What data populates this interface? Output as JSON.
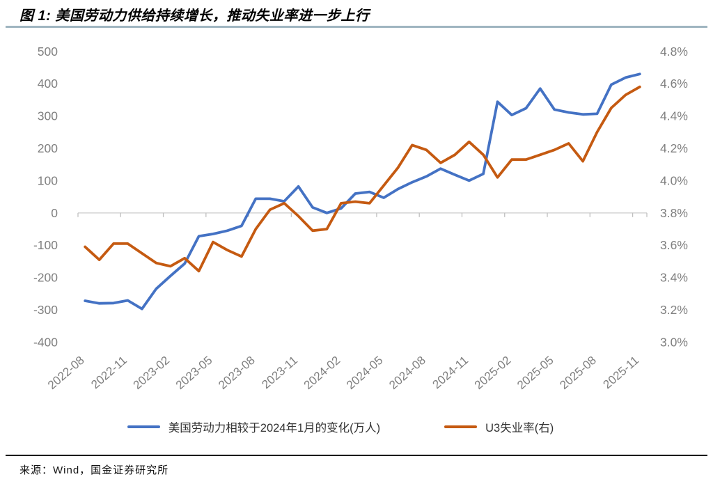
{
  "title": "图 1: 美国劳动力供给持续增长，推动失业率进一步上行",
  "source": "来源：Wind，国金证券研究所",
  "colors": {
    "labor_force_line": "#4472C4",
    "u3_line": "#C55A11",
    "axis_text": "#7f7f7f",
    "zero_gridline": "#d6d6d6",
    "title_rule": "#9fb5c0",
    "source_rule": "#1a1a1a"
  },
  "chart_data": {
    "type": "line",
    "title": "图 1: 美国劳动力供给持续增长，推动失业率进一步上行",
    "grid": "horizontal zero-line only",
    "legend_position": "bottom",
    "x": [
      "2022-08",
      "2022-09",
      "2022-10",
      "2022-11",
      "2022-12",
      "2023-01",
      "2023-02",
      "2023-03",
      "2023-04",
      "2023-05",
      "2023-06",
      "2023-07",
      "2023-08",
      "2023-09",
      "2023-10",
      "2023-11",
      "2023-12",
      "2024-01",
      "2024-02",
      "2024-03",
      "2024-04",
      "2024-05",
      "2024-06",
      "2024-07",
      "2024-08",
      "2024-09",
      "2024-10",
      "2024-11",
      "2024-12",
      "2025-01",
      "2025-02",
      "2025-03",
      "2025-04",
      "2025-05",
      "2025-06",
      "2025-07",
      "2025-08",
      "2025-09",
      "2025-10",
      "2025-11"
    ],
    "x_tick_labels": [
      "2022-08",
      "2022-11",
      "2023-02",
      "2023-05",
      "2023-08",
      "2023-11",
      "2024-02",
      "2024-05",
      "2024-08",
      "2024-11",
      "2025-02",
      "2025-05",
      "2025-08",
      "2025-11"
    ],
    "series": [
      {
        "name": "美国劳动力相较于2024年1月的变化(万人)",
        "axis": "left",
        "color": "#4472C4",
        "values": [
          -272,
          -280,
          -279,
          -271,
          -297,
          -235,
          -195,
          -157,
          -72,
          -65,
          -55,
          -40,
          44,
          44,
          36,
          82,
          17,
          0,
          14,
          60,
          65,
          47,
          74,
          95,
          113,
          137,
          118,
          100,
          121,
          344,
          303,
          324,
          385,
          320,
          311,
          305,
          307,
          397,
          419,
          430
        ]
      },
      {
        "name": "U3失业率(右)",
        "axis": "right",
        "color": "#C55A11",
        "values": [
          3.59,
          3.51,
          3.61,
          3.61,
          3.55,
          3.49,
          3.47,
          3.52,
          3.44,
          3.62,
          3.57,
          3.53,
          3.7,
          3.82,
          3.86,
          3.78,
          3.69,
          3.7,
          3.86,
          3.87,
          3.86,
          3.97,
          4.08,
          4.22,
          4.19,
          4.11,
          4.16,
          4.24,
          4.16,
          4.02,
          4.13,
          4.13,
          4.16,
          4.19,
          4.23,
          4.12,
          4.3,
          4.45,
          4.53,
          4.58
        ]
      }
    ],
    "left_axis": {
      "min": -400,
      "max": 500,
      "step": 100,
      "ticks": [
        "500",
        "400",
        "300",
        "200",
        "100",
        "0",
        "-100",
        "-200",
        "-300",
        "-400"
      ]
    },
    "right_axis": {
      "min": 3.0,
      "max": 4.8,
      "step": 0.2,
      "ticks": [
        "4.8%",
        "4.6%",
        "4.4%",
        "4.2%",
        "4.0%",
        "3.8%",
        "3.6%",
        "3.4%",
        "3.2%",
        "3.0%"
      ],
      "zero_alignment": "0 on left axis aligns with 3.8%"
    }
  }
}
